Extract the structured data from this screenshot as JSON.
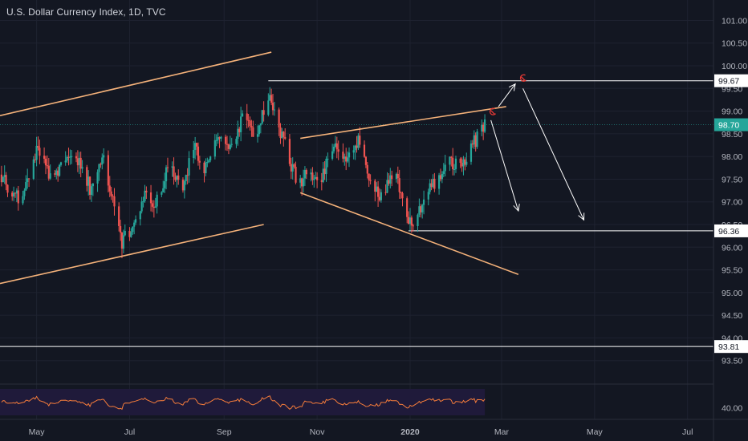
{
  "header": {
    "title": "U.S. Dollar Currency Index, 1D, TVC"
  },
  "colors": {
    "background": "#131722",
    "grid": "#1e2230",
    "text": "#b2b5be",
    "up_candle": "#26a69a",
    "down_candle": "#ef5350",
    "trendline": "#f5b27a",
    "horizontal_line": "#ffffff",
    "current_price": "#26a69a",
    "rsi_line": "#f57c3a",
    "rsi_band": "#1f1a3a",
    "marker": "#e53935"
  },
  "chart_data": [
    {
      "type": "candlestick",
      "title": "U.S. Dollar Currency Index, 1D, TVC",
      "x_range": [
        "2019-04-07",
        "2020-07-18"
      ],
      "x_tick_labels": [
        {
          "date": "2019-05-01",
          "label": "May"
        },
        {
          "date": "2019-07-01",
          "label": "Jul"
        },
        {
          "date": "2019-09-01",
          "label": "Sep"
        },
        {
          "date": "2019-11-01",
          "label": "Nov"
        },
        {
          "date": "2020-01-01",
          "label": "2020"
        },
        {
          "date": "2020-03-01",
          "label": "Mar"
        },
        {
          "date": "2020-05-01",
          "label": "May"
        },
        {
          "date": "2020-07-01",
          "label": "Jul"
        }
      ],
      "ylim": [
        93.0,
        101.45
      ],
      "y_ticks": [
        101.0,
        100.5,
        100.0,
        99.5,
        99.0,
        98.5,
        98.0,
        97.5,
        97.0,
        96.5,
        96.0,
        95.5,
        95.0,
        94.5,
        94.0,
        93.5
      ],
      "y_tick_labels": [
        "101.00",
        "100.50",
        "100.00",
        "99.50",
        "99.00",
        "98.50",
        "98.00",
        "97.50",
        "97.00",
        "96.50",
        "96.00",
        "95.50",
        "95.00",
        "94.50",
        "94.00",
        "93.50"
      ],
      "anchor_path": [
        {
          "date": "2019-04-07",
          "value": 97.6
        },
        {
          "date": "2019-04-20",
          "value": 97.0
        },
        {
          "date": "2019-05-01",
          "value": 98.1
        },
        {
          "date": "2019-05-12",
          "value": 97.5
        },
        {
          "date": "2019-05-25",
          "value": 98.2
        },
        {
          "date": "2019-06-05",
          "value": 97.3
        },
        {
          "date": "2019-06-14",
          "value": 97.9
        },
        {
          "date": "2019-06-26",
          "value": 96.1
        },
        {
          "date": "2019-07-03",
          "value": 96.4
        },
        {
          "date": "2019-07-10",
          "value": 97.1
        },
        {
          "date": "2019-07-18",
          "value": 96.9
        },
        {
          "date": "2019-07-28",
          "value": 97.9
        },
        {
          "date": "2019-08-04",
          "value": 97.2
        },
        {
          "date": "2019-08-12",
          "value": 98.3
        },
        {
          "date": "2019-08-20",
          "value": 97.7
        },
        {
          "date": "2019-08-30",
          "value": 98.6
        },
        {
          "date": "2019-09-06",
          "value": 98.2
        },
        {
          "date": "2019-09-14",
          "value": 98.9
        },
        {
          "date": "2019-09-22",
          "value": 98.5
        },
        {
          "date": "2019-09-30",
          "value": 99.4
        },
        {
          "date": "2019-10-05",
          "value": 98.9
        },
        {
          "date": "2019-10-14",
          "value": 97.9
        },
        {
          "date": "2019-10-20",
          "value": 97.4
        },
        {
          "date": "2019-10-27",
          "value": 97.7
        },
        {
          "date": "2019-11-03",
          "value": 97.4
        },
        {
          "date": "2019-11-10",
          "value": 98.2
        },
        {
          "date": "2019-11-18",
          "value": 98.0
        },
        {
          "date": "2019-11-28",
          "value": 98.3
        },
        {
          "date": "2019-12-05",
          "value": 97.6
        },
        {
          "date": "2019-12-12",
          "value": 97.1
        },
        {
          "date": "2019-12-18",
          "value": 97.5
        },
        {
          "date": "2019-12-24",
          "value": 97.5
        },
        {
          "date": "2019-12-31",
          "value": 96.5
        },
        {
          "date": "2020-01-07",
          "value": 96.8
        },
        {
          "date": "2020-01-14",
          "value": 97.3
        },
        {
          "date": "2020-01-21",
          "value": 97.6
        },
        {
          "date": "2020-01-28",
          "value": 97.9
        },
        {
          "date": "2020-02-04",
          "value": 97.7
        },
        {
          "date": "2020-02-12",
          "value": 98.3
        },
        {
          "date": "2020-02-19",
          "value": 98.7
        }
      ],
      "candle_low_high": {
        "min": 95.85,
        "max": 99.67
      },
      "current_price": {
        "value": 98.7,
        "label": "98.70"
      },
      "horizontal_levels": [
        {
          "value": 99.67,
          "label": "99.67",
          "start": "2019-09-30",
          "end": "2020-07-18"
        },
        {
          "value": 96.36,
          "label": "96.36",
          "start": "2019-12-31",
          "end": "2020-07-18"
        },
        {
          "value": 93.81,
          "label": "93.81",
          "start": "2019-04-07",
          "end": "2020-07-18"
        }
      ],
      "trendlines": [
        {
          "name": "upper-channel",
          "from": {
            "date": "2019-04-07",
            "value": 98.9
          },
          "to": {
            "date": "2019-10-02",
            "value": 100.3
          }
        },
        {
          "name": "lower-channel",
          "from": {
            "date": "2019-04-07",
            "value": 95.2
          },
          "to": {
            "date": "2019-09-27",
            "value": 96.5
          }
        },
        {
          "name": "wedge-upper",
          "from": {
            "date": "2019-10-21",
            "value": 98.4
          },
          "to": {
            "date": "2020-03-04",
            "value": 99.1
          }
        },
        {
          "name": "wedge-lower",
          "from": {
            "date": "2019-10-21",
            "value": 97.2
          },
          "to": {
            "date": "2020-03-12",
            "value": 95.4
          }
        }
      ],
      "arrows": [
        {
          "name": "projection-up",
          "from": {
            "date": "2020-02-28",
            "value": 99.1
          },
          "to": {
            "date": "2020-03-10",
            "value": 99.6
          }
        },
        {
          "name": "projection-down-short",
          "from": {
            "date": "2020-02-23",
            "value": 98.8
          },
          "to": {
            "date": "2020-03-12",
            "value": 96.8
          }
        },
        {
          "name": "projection-down-long",
          "from": {
            "date": "2020-03-15",
            "value": 99.5
          },
          "to": {
            "date": "2020-04-24",
            "value": 96.6
          }
        }
      ],
      "markers": [
        {
          "name": "target-marker-1",
          "date": "2020-02-24",
          "value": 98.98
        },
        {
          "name": "target-marker-2",
          "date": "2020-03-15",
          "value": 99.72
        }
      ]
    },
    {
      "type": "line",
      "name": "RSI",
      "y_tick_labels": [
        "40.00"
      ],
      "ylim": [
        20,
        80
      ],
      "x_range": [
        "2019-04-07",
        "2020-02-19"
      ]
    }
  ]
}
